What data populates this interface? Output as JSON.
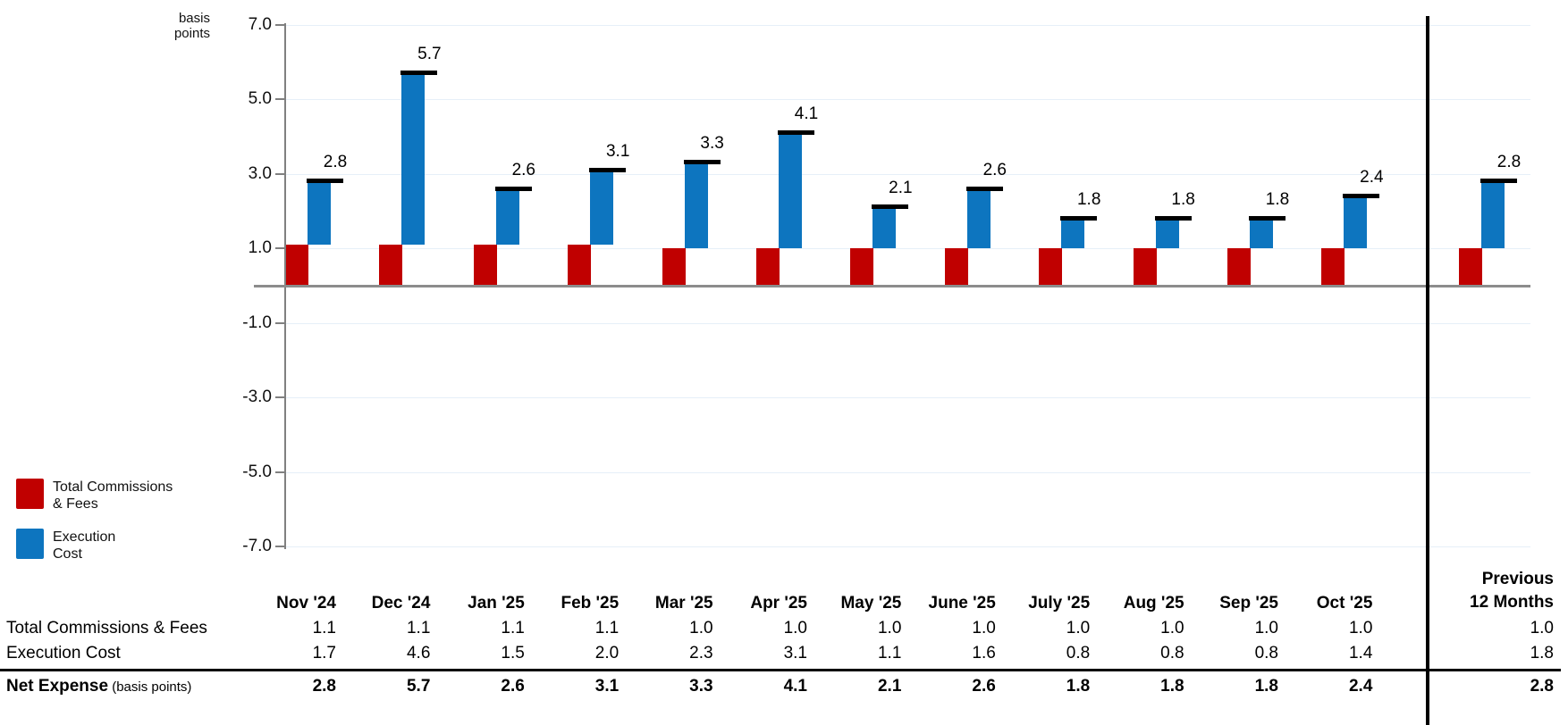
{
  "chart_data": {
    "type": "bar",
    "title": "",
    "unit_label_lines": [
      "basis",
      "points"
    ],
    "categories": [
      "Nov '24",
      "Dec '24",
      "Jan '25",
      "Feb '25",
      "Mar '25",
      "Apr '25",
      "May '25",
      "June '25",
      "July '25",
      "Aug '25",
      "Sep '25",
      "Oct '25",
      "Previous 12 Months"
    ],
    "series": [
      {
        "name": "Total Commissions & Fees",
        "color": "#C00000",
        "values": [
          1.1,
          1.1,
          1.1,
          1.1,
          1.0,
          1.0,
          1.0,
          1.0,
          1.0,
          1.0,
          1.0,
          1.0,
          1.0
        ]
      },
      {
        "name": "Execution Cost",
        "color": "#0D75BF",
        "values": [
          1.7,
          4.6,
          1.5,
          2.0,
          2.3,
          3.1,
          1.1,
          1.6,
          0.8,
          0.8,
          0.8,
          1.4,
          1.8
        ]
      }
    ],
    "totals": [
      2.8,
      5.7,
      2.6,
      3.1,
      3.3,
      4.1,
      2.1,
      2.6,
      1.8,
      1.8,
      1.8,
      2.4,
      2.8
    ],
    "total_marker": "black-dash-cap",
    "ylim": [
      -7,
      7
    ],
    "ytick_values": [
      7,
      5,
      3,
      1,
      -1,
      -3,
      -5,
      -7
    ],
    "grid": true,
    "legend_position": "bottom-left"
  },
  "legend": {
    "commissions": {
      "line1": "Total Commissions",
      "line2": "& Fees",
      "color": "#C00000"
    },
    "execution": {
      "line1": "Execution",
      "line2": "Cost",
      "color": "#0D75BF"
    }
  },
  "table": {
    "month_headers": [
      "Nov '24",
      "Dec '24",
      "Jan '25",
      "Feb '25",
      "Mar '25",
      "Apr '25",
      "May '25",
      "June '25",
      "July '25",
      "Aug '25",
      "Sep '25",
      "Oct '25"
    ],
    "last_col_header_lines": [
      "Previous",
      "12 Months"
    ],
    "rows": [
      {
        "label": "Total Commissions & Fees",
        "label_suffix": "",
        "bold": false,
        "values": [
          "1.1",
          "1.1",
          "1.1",
          "1.1",
          "1.0",
          "1.0",
          "1.0",
          "1.0",
          "1.0",
          "1.0",
          "1.0",
          "1.0"
        ],
        "last": "1.0"
      },
      {
        "label": "Execution Cost",
        "label_suffix": "",
        "bold": false,
        "values": [
          "1.7",
          "4.6",
          "1.5",
          "2.0",
          "2.3",
          "3.1",
          "1.1",
          "1.6",
          "0.8",
          "0.8",
          "0.8",
          "1.4"
        ],
        "last": "1.8"
      },
      {
        "label": "Net Expense",
        "label_suffix": " (basis points)",
        "bold": true,
        "values": [
          "2.8",
          "5.7",
          "2.6",
          "3.1",
          "3.3",
          "4.1",
          "2.1",
          "2.6",
          "1.8",
          "1.8",
          "1.8",
          "2.4"
        ],
        "last": "2.8"
      }
    ]
  },
  "colors": {
    "commissions_red": "#C00000",
    "execution_blue": "#0D75BF",
    "gridline": "#E6EFF8",
    "zero_line": "#8C8C8C",
    "axis": "#808080",
    "divider": "#000000",
    "cap": "#000000"
  }
}
